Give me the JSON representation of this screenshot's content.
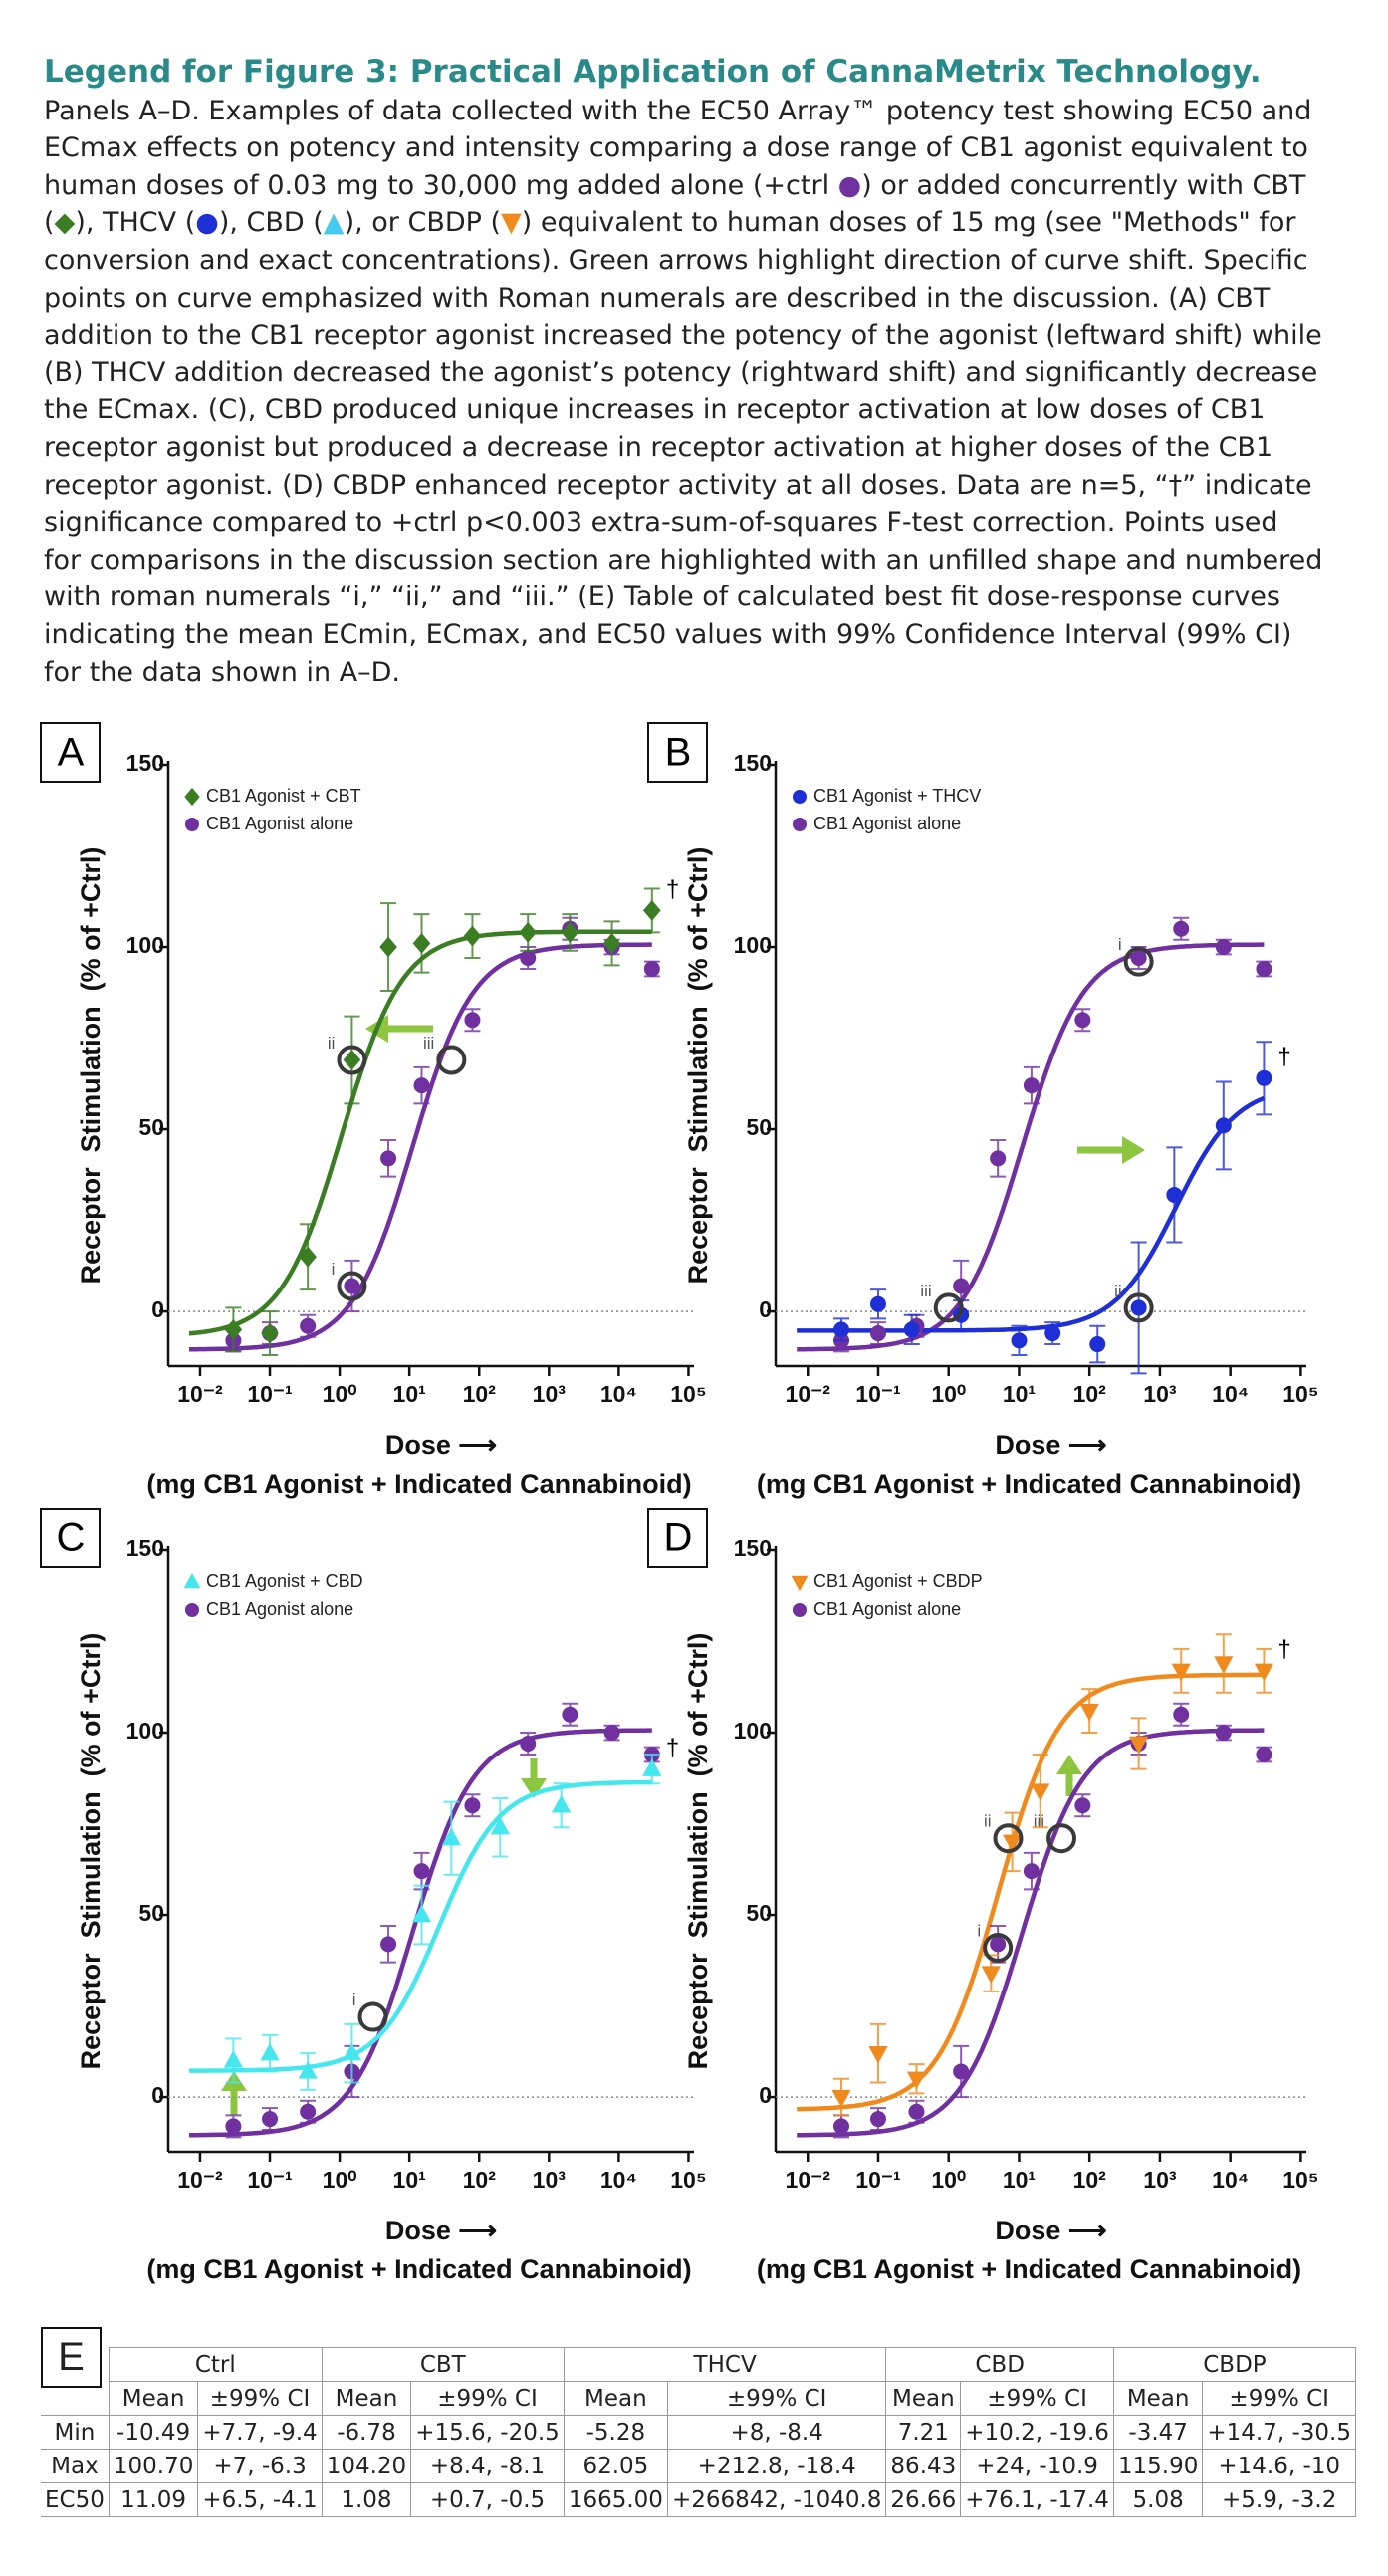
{
  "legend": {
    "title": "Legend for Figure 3: Practical Application of CannaMetrix Technology.",
    "body": [
      "Panels A–D. Examples of data collected with the EC50 Array™ potency test showing EC50 and ECmax effects on potency and intensity comparing a dose range of CB1 agonist equivalent to human doses of 0.03 mg to 30,000 mg added alone (+ctrl",
      "●",
      ") or added concurrently with CBT (",
      "◆",
      "), THCV (",
      "●",
      "), CBD (",
      "▲",
      "), or CBDP (",
      "▼",
      ") equivalent to human doses of 15 mg (see \"Methods\" for conversion and exact concentrations). Green arrows highlight direction of curve shift. Specific points on curve emphasized with Roman numerals are described in the discussion. (A) CBT addition to the CB1 receptor agonist increased the potency of the agonist (leftward shift) while (B) THCV addition decreased the agonist’s potency (rightward shift) and significantly decrease the ECmax. (C), CBD produced unique increases in receptor activation at low doses of CB1 receptor agonist but produced a decrease in receptor activation at higher doses of the CB1 receptor agonist. (D) CBDP enhanced receptor activity at all doses. Data are n=5, “†” indicate significance compared to +ctrl p<0.003 extra-sum-of-squares F-test correction. Points used for comparisons in the discussion section are highlighted with an unfilled shape and numbered with roman numerals “i,” “ii,” and “iii.” (E) Table of calculated best fit dose-response curves indicating the mean ECmin, ECmax, and EC50 values with 99% Confidence Interval (99% CI) for the data shown in A–D."
    ]
  },
  "chart_data": [
    {
      "type": "scatter",
      "panel": "A",
      "xscale": "log",
      "xlim": [
        0.0035,
        120000
      ],
      "ylim": [
        -15,
        150
      ],
      "xticks": [
        {
          "value": 0.01,
          "label": "10⁻²"
        },
        {
          "value": 0.1,
          "label": "10⁻¹"
        },
        {
          "value": 1,
          "label": "10⁰"
        },
        {
          "value": 10,
          "label": "10¹"
        },
        {
          "value": 100,
          "label": "10²"
        },
        {
          "value": 1000,
          "label": "10³"
        },
        {
          "value": 10000,
          "label": "10⁴"
        },
        {
          "value": 100000,
          "label": "10⁵"
        }
      ],
      "yticks": [
        0,
        50,
        100,
        150
      ],
      "zero_line": true,
      "legend_position": "upper left",
      "ylabel": "Receptor  Stimulation  (% of +Ctrl)",
      "xlabel": "Dose ⟶",
      "xlabel2": "(mg CB1 Agonist + Indicated Cannabinoid)",
      "significance_mark": "†",
      "series": [
        {
          "name": "CB1 Agonist + CBT",
          "color": "#3a7d22",
          "marker": "diamond",
          "x": [
            0.03,
            0.1,
            0.35,
            1.5,
            5,
            15,
            80,
            500,
            2000,
            8000,
            30000
          ],
          "values": [
            -5,
            -6,
            15,
            69,
            100,
            101,
            103,
            104,
            104,
            101,
            110
          ],
          "errors": [
            6,
            6,
            9,
            12,
            12,
            8,
            6,
            5,
            5,
            6,
            6
          ]
        },
        {
          "name": "CB1 Agonist alone",
          "color": "#7030a0",
          "marker": "circle",
          "x": [
            0.03,
            0.1,
            0.35,
            1.5,
            5,
            15,
            80,
            500,
            2000,
            8000,
            30000
          ],
          "values": [
            -8,
            -6,
            -4,
            7,
            42,
            62,
            80,
            97,
            105,
            100,
            94
          ],
          "errors": [
            3,
            3,
            3,
            7,
            5,
            5,
            3,
            3,
            3,
            2,
            2
          ]
        }
      ],
      "annotations": [
        {
          "label": "i",
          "x": 1.5,
          "y": 7
        },
        {
          "label": "ii",
          "x": 1.5,
          "y": 69
        },
        {
          "label": "iii",
          "x": 40,
          "y": 69
        }
      ]
    },
    {
      "type": "scatter",
      "panel": "B",
      "xscale": "log",
      "xlim": [
        0.0035,
        120000
      ],
      "ylim": [
        -15,
        150
      ],
      "xticks": [
        {
          "value": 0.01,
          "label": "10⁻²"
        },
        {
          "value": 0.1,
          "label": "10⁻¹"
        },
        {
          "value": 1,
          "label": "10⁰"
        },
        {
          "value": 10,
          "label": "10¹"
        },
        {
          "value": 100,
          "label": "10²"
        },
        {
          "value": 1000,
          "label": "10³"
        },
        {
          "value": 10000,
          "label": "10⁴"
        },
        {
          "value": 100000,
          "label": "10⁵"
        }
      ],
      "yticks": [
        0,
        50,
        100,
        150
      ],
      "zero_line": true,
      "legend_position": "upper left",
      "ylabel": "Receptor  Stimulation  (% of +Ctrl)",
      "xlabel": "Dose ⟶",
      "xlabel2": "(mg CB1 Agonist + Indicated Cannabinoid)",
      "significance_mark": "†",
      "series": [
        {
          "name": "CB1 Agonist + THCV",
          "color": "#1f2fd6",
          "marker": "circle",
          "x": [
            0.03,
            0.1,
            0.3,
            1.5,
            10,
            30,
            130,
            500,
            1600,
            8000,
            30000
          ],
          "values": [
            -5,
            2,
            -5,
            -1,
            -8,
            -6,
            -9,
            1,
            32,
            51,
            64
          ],
          "errors": [
            3,
            4,
            4,
            4,
            4,
            3,
            5,
            18,
            13,
            12,
            10
          ]
        },
        {
          "name": "CB1 Agonist alone",
          "color": "#7030a0",
          "marker": "circle",
          "x": [
            0.03,
            0.1,
            0.35,
            1.5,
            5,
            15,
            80,
            500,
            2000,
            8000,
            30000
          ],
          "values": [
            -8,
            -6,
            -4,
            7,
            42,
            62,
            80,
            97,
            105,
            100,
            94
          ],
          "errors": [
            3,
            3,
            3,
            7,
            5,
            5,
            3,
            3,
            3,
            2,
            2
          ]
        }
      ],
      "annotations": [
        {
          "label": "iii",
          "x": 1,
          "y": 1
        },
        {
          "label": "i",
          "x": 500,
          "y": 96
        },
        {
          "label": "ii",
          "x": 500,
          "y": 1
        }
      ]
    },
    {
      "type": "scatter",
      "panel": "C",
      "xscale": "log",
      "xlim": [
        0.0035,
        120000
      ],
      "ylim": [
        -15,
        150
      ],
      "xticks": [
        {
          "value": 0.01,
          "label": "10⁻²"
        },
        {
          "value": 0.1,
          "label": "10⁻¹"
        },
        {
          "value": 1,
          "label": "10⁰"
        },
        {
          "value": 10,
          "label": "10¹"
        },
        {
          "value": 100,
          "label": "10²"
        },
        {
          "value": 1000,
          "label": "10³"
        },
        {
          "value": 10000,
          "label": "10⁴"
        },
        {
          "value": 100000,
          "label": "10⁵"
        }
      ],
      "yticks": [
        0,
        50,
        100,
        150
      ],
      "zero_line": true,
      "legend_position": "upper left",
      "ylabel": "Receptor  Stimulation  (% of +Ctrl)",
      "xlabel": "Dose ⟶",
      "xlabel2": "(mg CB1 Agonist + Indicated Cannabinoid)",
      "significance_mark": "†",
      "series": [
        {
          "name": "CB1 Agonist + CBD",
          "color": "#45e6ee",
          "marker": "triangle-up",
          "x": [
            0.03,
            0.1,
            0.35,
            1.5,
            15,
            40,
            200,
            1500,
            30000
          ],
          "values": [
            10,
            12,
            7,
            12,
            50,
            71,
            74,
            80,
            90
          ],
          "errors": [
            6,
            5,
            5,
            8,
            8,
            10,
            8,
            6,
            4
          ]
        },
        {
          "name": "CB1 Agonist alone",
          "color": "#7030a0",
          "marker": "circle",
          "x": [
            0.03,
            0.1,
            0.35,
            1.5,
            5,
            15,
            80,
            500,
            2000,
            8000,
            30000
          ],
          "values": [
            -8,
            -6,
            -4,
            7,
            42,
            62,
            80,
            97,
            105,
            100,
            94
          ],
          "errors": [
            3,
            3,
            3,
            7,
            5,
            5,
            3,
            3,
            3,
            2,
            2
          ]
        }
      ],
      "annotations": [
        {
          "label": "i",
          "x": 3,
          "y": 22
        }
      ]
    },
    {
      "type": "scatter",
      "panel": "D",
      "xscale": "log",
      "xlim": [
        0.0035,
        120000
      ],
      "ylim": [
        -15,
        150
      ],
      "xticks": [
        {
          "value": 0.01,
          "label": "10⁻²"
        },
        {
          "value": 0.1,
          "label": "10⁻¹"
        },
        {
          "value": 1,
          "label": "10⁰"
        },
        {
          "value": 10,
          "label": "10¹"
        },
        {
          "value": 100,
          "label": "10²"
        },
        {
          "value": 1000,
          "label": "10³"
        },
        {
          "value": 10000,
          "label": "10⁴"
        },
        {
          "value": 100000,
          "label": "10⁵"
        }
      ],
      "yticks": [
        0,
        50,
        100,
        150
      ],
      "zero_line": true,
      "legend_position": "upper left",
      "ylabel": "Receptor  Stimulation  (% of +Ctrl)",
      "xlabel": "Dose ⟶",
      "xlabel2": "(mg CB1 Agonist + Indicated Cannabinoid)",
      "significance_mark": "†",
      "series": [
        {
          "name": "CB1 Agonist + CBDP",
          "color": "#f08a1c",
          "marker": "triangle-down",
          "x": [
            0.03,
            0.1,
            0.35,
            4,
            8,
            20,
            100,
            500,
            2000,
            8000,
            30000
          ],
          "values": [
            0,
            12,
            5,
            34,
            70,
            84,
            106,
            97,
            117,
            119,
            117
          ],
          "errors": [
            5,
            8,
            4,
            5,
            8,
            10,
            6,
            7,
            6,
            8,
            6
          ]
        },
        {
          "name": "CB1 Agonist alone",
          "color": "#7030a0",
          "marker": "circle",
          "x": [
            0.03,
            0.1,
            0.35,
            1.5,
            5,
            15,
            80,
            500,
            2000,
            8000,
            30000
          ],
          "values": [
            -8,
            -6,
            -4,
            7,
            42,
            62,
            80,
            97,
            105,
            100,
            94
          ],
          "errors": [
            3,
            3,
            3,
            7,
            5,
            5,
            3,
            3,
            3,
            2,
            2
          ]
        }
      ],
      "annotations": [
        {
          "label": "i",
          "x": 5,
          "y": 41
        },
        {
          "label": "ii",
          "x": 7,
          "y": 71
        },
        {
          "label": "iii",
          "x": 40,
          "y": 71
        }
      ]
    }
  ],
  "table": {
    "label": "E",
    "groups": [
      "Ctrl",
      "CBT",
      "THCV",
      "CBD",
      "CBDP"
    ],
    "subheaders": [
      "Mean",
      "±99% CI"
    ],
    "rows": [
      {
        "label": "Min",
        "cells": [
          [
            "-10.49",
            "+7.7, -9.4"
          ],
          [
            "-6.78",
            "+15.6, -20.5"
          ],
          [
            "-5.28",
            "+8, -8.4"
          ],
          [
            "7.21",
            "+10.2, -19.6"
          ],
          [
            "-3.47",
            "+14.7, -30.5"
          ]
        ]
      },
      {
        "label": "Max",
        "cells": [
          [
            "100.70",
            "+7, -6.3"
          ],
          [
            "104.20",
            "+8.4, -8.1"
          ],
          [
            "62.05",
            "+212.8, -18.4"
          ],
          [
            "86.43",
            "+24, -10.9"
          ],
          [
            "115.90",
            "+14.6, -10"
          ]
        ]
      },
      {
        "label": "EC50",
        "cells": [
          [
            "11.09",
            "+6.5, -4.1"
          ],
          [
            "1.08",
            "+0.7, -0.5"
          ],
          [
            "1665.00",
            "+266842, -1040.8"
          ],
          [
            "26.66",
            "+76.1, -17.4"
          ],
          [
            "5.08",
            "+5.9, -3.2"
          ]
        ]
      }
    ]
  }
}
